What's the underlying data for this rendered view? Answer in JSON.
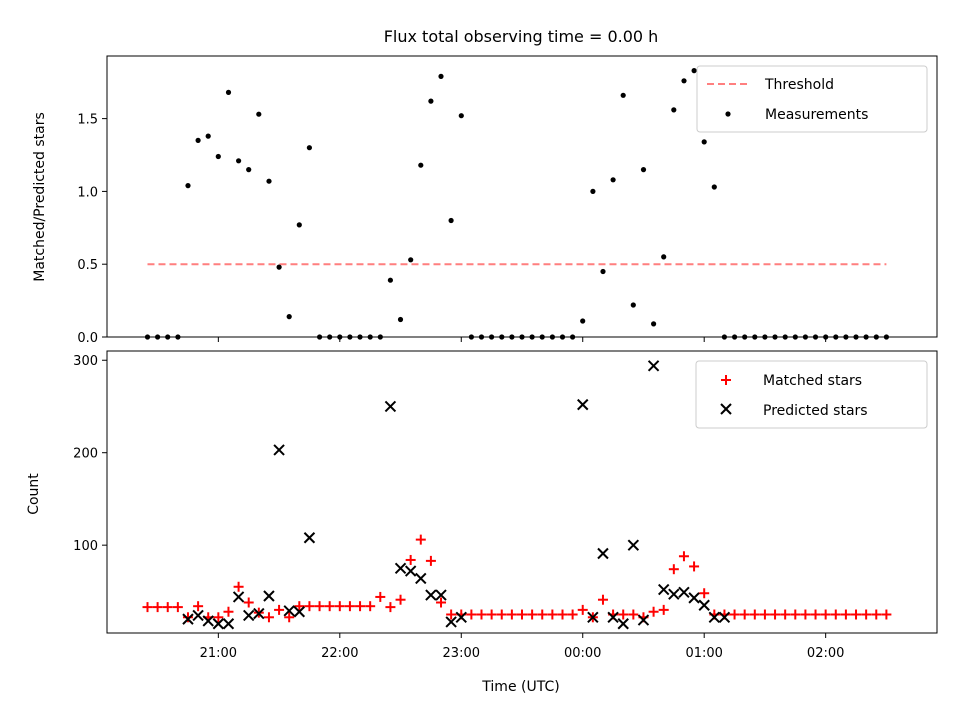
{
  "figure": {
    "title": "Flux total observing time = 0.00 h"
  },
  "chart_data": [
    {
      "type": "scatter",
      "title": "Flux total observing time = 0.00 h",
      "xlabel": "",
      "ylabel": "Matched/Predicted stars",
      "xlim": [
        "20:05",
        "02:55"
      ],
      "ylim": [
        0,
        1.93
      ],
      "yticks": [
        0.0,
        0.5,
        1.0,
        1.5
      ],
      "ytick_labels": [
        "0.0",
        "0.5",
        "1.0",
        "1.5"
      ],
      "legend_position": "upper right",
      "threshold": {
        "name": "Threshold",
        "value": 0.5,
        "x_start": "20:25",
        "x_end": "02:30",
        "color": "#ff7f7f",
        "style": "dashed"
      },
      "series": [
        {
          "name": "Measurements",
          "color": "#000000",
          "marker": "dot",
          "x": [
            "20:25",
            "20:30",
            "20:35",
            "20:40",
            "20:45",
            "20:50",
            "20:55",
            "21:00",
            "21:05",
            "21:10",
            "21:15",
            "21:20",
            "21:25",
            "21:30",
            "21:35",
            "21:40",
            "21:45",
            "21:50",
            "21:55",
            "22:00",
            "22:05",
            "22:10",
            "22:15",
            "22:20",
            "22:25",
            "22:30",
            "22:35",
            "22:40",
            "22:45",
            "22:50",
            "22:55",
            "23:00",
            "23:05",
            "23:10",
            "23:15",
            "23:20",
            "23:25",
            "23:30",
            "23:35",
            "23:40",
            "23:45",
            "23:50",
            "23:55",
            "00:00",
            "00:05",
            "00:10",
            "00:15",
            "00:20",
            "00:25",
            "00:30",
            "00:35",
            "00:40",
            "00:45",
            "00:50",
            "00:55",
            "01:00",
            "01:05",
            "01:10",
            "01:15",
            "01:20",
            "01:25",
            "01:30",
            "01:35",
            "01:40",
            "01:45",
            "01:50",
            "01:55",
            "02:00",
            "02:05",
            "02:10",
            "02:15",
            "02:20",
            "02:25",
            "02:30"
          ],
          "y": [
            0,
            0,
            0,
            0,
            1.04,
            1.35,
            1.38,
            1.24,
            1.68,
            1.21,
            1.15,
            1.53,
            1.07,
            0.48,
            0.14,
            0.77,
            1.3,
            0,
            0,
            0,
            0,
            0,
            0,
            0,
            0.39,
            0.12,
            0.53,
            1.18,
            1.62,
            1.79,
            0.8,
            1.52,
            0,
            0,
            0,
            0,
            0,
            0,
            0,
            0,
            0,
            0,
            0,
            0.11,
            1.0,
            0.45,
            1.08,
            1.66,
            0.22,
            1.15,
            0.09,
            0.55,
            1.56,
            1.76,
            1.83,
            1.34,
            1.03,
            0,
            0,
            0,
            0,
            0,
            0,
            0,
            0,
            0,
            0,
            0,
            0,
            0,
            0,
            0,
            0,
            0
          ]
        }
      ]
    },
    {
      "type": "scatter",
      "title": "",
      "xlabel": "Time (UTC)",
      "ylabel": "Count",
      "xlim": [
        "20:05",
        "02:55"
      ],
      "ylim": [
        5,
        310
      ],
      "yticks": [
        100,
        200,
        300
      ],
      "ytick_labels": [
        "100",
        "200",
        "300"
      ],
      "xticks": [
        "21:00",
        "22:00",
        "23:00",
        "00:00",
        "01:00",
        "02:00"
      ],
      "legend_position": "upper right",
      "series": [
        {
          "name": "Matched stars",
          "color": "#ff0000",
          "marker": "plus",
          "x": [
            "20:25",
            "20:30",
            "20:35",
            "20:40",
            "20:45",
            "20:50",
            "20:55",
            "21:00",
            "21:05",
            "21:10",
            "21:15",
            "21:20",
            "21:25",
            "21:30",
            "21:35",
            "21:40",
            "21:45",
            "21:50",
            "21:55",
            "22:00",
            "22:05",
            "22:10",
            "22:15",
            "22:20",
            "22:25",
            "22:30",
            "22:35",
            "22:40",
            "22:45",
            "22:50",
            "22:55",
            "23:00",
            "23:05",
            "23:10",
            "23:15",
            "23:20",
            "23:25",
            "23:30",
            "23:35",
            "23:40",
            "23:45",
            "23:50",
            "23:55",
            "00:00",
            "00:05",
            "00:10",
            "00:15",
            "00:20",
            "00:25",
            "00:30",
            "00:35",
            "00:40",
            "00:45",
            "00:50",
            "00:55",
            "01:00",
            "01:05",
            "01:10",
            "01:15",
            "01:20",
            "01:25",
            "01:30",
            "01:35",
            "01:40",
            "01:45",
            "01:50",
            "01:55",
            "02:00",
            "02:05",
            "02:10",
            "02:15",
            "02:20",
            "02:25",
            "02:30"
          ],
          "y": [
            33,
            33,
            33,
            33,
            22,
            34,
            22,
            22,
            28,
            55,
            38,
            27,
            22,
            30,
            22,
            34,
            34,
            34,
            34,
            34,
            34,
            34,
            34,
            44,
            33,
            41,
            84,
            106,
            83,
            38,
            25,
            25,
            25,
            25,
            25,
            25,
            25,
            25,
            25,
            25,
            25,
            25,
            25,
            30,
            22,
            41,
            25,
            25,
            25,
            22,
            28,
            30,
            74,
            88,
            77,
            48,
            25,
            25,
            25,
            25,
            25,
            25,
            25,
            25,
            25,
            25,
            25,
            25,
            25,
            25,
            25,
            25,
            25,
            25
          ]
        },
        {
          "name": "Predicted stars",
          "color": "#000000",
          "marker": "x",
          "x": [
            "20:45",
            "20:50",
            "20:55",
            "21:00",
            "21:05",
            "21:10",
            "21:15",
            "21:20",
            "21:25",
            "21:30",
            "21:35",
            "21:40",
            "21:45",
            "22:25",
            "22:30",
            "22:35",
            "22:40",
            "22:45",
            "22:50",
            "22:55",
            "23:00",
            "00:00",
            "00:05",
            "00:10",
            "00:15",
            "00:20",
            "00:25",
            "00:30",
            "00:35",
            "00:40",
            "00:45",
            "00:50",
            "00:55",
            "01:00",
            "01:05",
            "01:10"
          ],
          "y": [
            20,
            24,
            18,
            15,
            15,
            44,
            24,
            26,
            45,
            203,
            29,
            28,
            108,
            250,
            75,
            72,
            64,
            46,
            46,
            17,
            22,
            252,
            22,
            91,
            22,
            15,
            100,
            19,
            294,
            52,
            47,
            49,
            43,
            35,
            22,
            22
          ]
        }
      ]
    }
  ]
}
